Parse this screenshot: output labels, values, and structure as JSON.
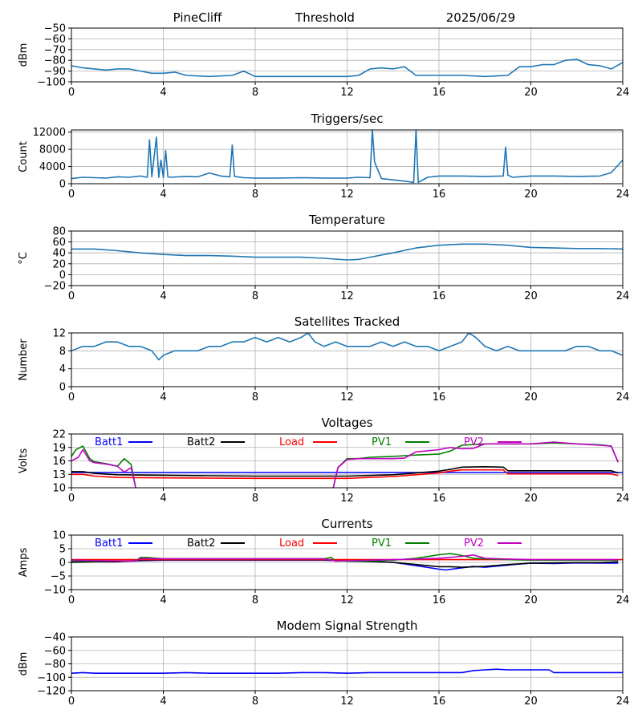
{
  "header": {
    "site": "PineCliff",
    "mode": "Threshold",
    "date": "2025/06/29"
  },
  "chart_data": [
    {
      "id": "signal",
      "type": "line",
      "title": "",
      "ylabel": "dBm",
      "xlim": [
        0,
        24
      ],
      "ylim": [
        -100,
        -50
      ],
      "xticks": [
        0,
        4,
        8,
        12,
        16,
        20,
        24
      ],
      "yticks": [
        -100,
        -90,
        -80,
        -70,
        -60,
        -50
      ],
      "grid": true,
      "series": [
        {
          "color": "#1f77b4",
          "x": [
            0,
            0.5,
            1,
            1.5,
            2,
            2.5,
            3,
            3.5,
            4,
            4.5,
            5,
            6,
            7,
            7.5,
            8,
            9,
            10,
            11,
            12,
            12.5,
            13,
            13.5,
            14,
            14.5,
            15,
            15.5,
            16,
            17,
            18,
            19,
            19.5,
            20,
            20.5,
            21,
            21.5,
            22,
            22.5,
            23,
            23.5,
            24
          ],
          "y": [
            -85,
            -87,
            -88,
            -89,
            -88,
            -88,
            -90,
            -92,
            -92,
            -91,
            -94,
            -95,
            -94,
            -90,
            -95,
            -95,
            -95,
            -95,
            -95,
            -94,
            -88,
            -87,
            -88,
            -86,
            -94,
            -94,
            -94,
            -94,
            -95,
            -94,
            -86,
            -86,
            -84,
            -84,
            -80,
            -79,
            -84,
            -85,
            -88,
            -82
          ]
        }
      ]
    },
    {
      "id": "triggers",
      "type": "line",
      "title": "Triggers/sec",
      "ylabel": "Count",
      "xlim": [
        0,
        24
      ],
      "ylim": [
        0,
        12500
      ],
      "xticks": [
        0,
        4,
        8,
        12,
        16,
        20,
        24
      ],
      "yticks": [
        0,
        4000,
        8000,
        12000
      ],
      "grid": true,
      "series": [
        {
          "color": "#1f77b4",
          "x": [
            0,
            0.5,
            1,
            1.5,
            2,
            2.5,
            3,
            3.3,
            3.4,
            3.5,
            3.7,
            3.8,
            3.9,
            4,
            4.1,
            4.2,
            4.3,
            5,
            5.5,
            6,
            6.5,
            6.9,
            7.0,
            7.1,
            7.5,
            8,
            9,
            10,
            11,
            12,
            12.5,
            13.0,
            13.1,
            13.2,
            13.5,
            14,
            14.5,
            14.9,
            15.0,
            15.1,
            15.5,
            16,
            17,
            18,
            18.8,
            18.9,
            19.0,
            19.2,
            19.5,
            20,
            21,
            22,
            23,
            23.5,
            24
          ],
          "y": [
            1200,
            1500,
            1400,
            1300,
            1600,
            1500,
            1800,
            1500,
            10200,
            1600,
            10800,
            1500,
            5500,
            1400,
            7700,
            1600,
            1500,
            1700,
            1600,
            2500,
            1800,
            1600,
            9000,
            1700,
            1400,
            1300,
            1300,
            1400,
            1300,
            1300,
            1500,
            1400,
            12500,
            5000,
            1200,
            900,
            600,
            300,
            12500,
            300,
            1500,
            1800,
            1800,
            1700,
            1800,
            8500,
            2000,
            1500,
            1600,
            1800,
            1800,
            1700,
            1800,
            2600,
            5500
          ]
        }
      ]
    },
    {
      "id": "temperature",
      "type": "line",
      "title": "Temperature",
      "ylabel": "°C",
      "xlim": [
        0,
        24
      ],
      "ylim": [
        -20,
        80
      ],
      "xticks": [
        0,
        4,
        8,
        12,
        16,
        20,
        24
      ],
      "yticks": [
        -20,
        0,
        20,
        40,
        60,
        80
      ],
      "grid": true,
      "series": [
        {
          "color": "#1f77b4",
          "x": [
            0,
            1,
            2,
            3,
            4,
            5,
            6,
            7,
            8,
            9,
            10,
            11,
            12,
            12.5,
            13,
            14,
            15,
            16,
            17,
            18,
            19,
            20,
            21,
            22,
            23,
            24
          ],
          "y": [
            47,
            47,
            44,
            40,
            37,
            35,
            35,
            34,
            32,
            32,
            32,
            30,
            27,
            28,
            32,
            40,
            49,
            54,
            56,
            56,
            54,
            50,
            49,
            48,
            48,
            47
          ]
        }
      ]
    },
    {
      "id": "satellites",
      "type": "line",
      "title": "Satellites Tracked",
      "ylabel": "Number",
      "xlim": [
        0,
        24
      ],
      "ylim": [
        0,
        12
      ],
      "xticks": [
        0,
        4,
        8,
        12,
        16,
        20,
        24
      ],
      "yticks": [
        0,
        4,
        8,
        12
      ],
      "grid": true,
      "series": [
        {
          "color": "#1f77b4",
          "x": [
            0,
            0.5,
            1,
            1.5,
            2,
            2.5,
            3,
            3.5,
            3.8,
            4,
            4.5,
            5,
            5.5,
            6,
            6.5,
            7,
            7.5,
            8,
            8.5,
            9,
            9.5,
            10,
            10.3,
            10.6,
            11,
            11.5,
            12,
            12.5,
            13,
            13.5,
            14,
            14.5,
            15,
            15.5,
            16,
            16.5,
            17,
            17.3,
            17.6,
            18,
            18.5,
            19,
            19.5,
            20,
            20.5,
            21,
            21.5,
            22,
            22.5,
            23,
            23.5,
            24
          ],
          "y": [
            8,
            9,
            9,
            10,
            10,
            9,
            9,
            8,
            6,
            7,
            8,
            8,
            8,
            9,
            9,
            10,
            10,
            11,
            10,
            11,
            10,
            11,
            12,
            10,
            9,
            10,
            9,
            9,
            9,
            10,
            9,
            10,
            9,
            9,
            8,
            9,
            10,
            12,
            11,
            9,
            8,
            9,
            8,
            8,
            8,
            8,
            8,
            9,
            9,
            8,
            8,
            7
          ]
        }
      ]
    },
    {
      "id": "voltages",
      "type": "line",
      "title": "Voltages",
      "ylabel": "Volts",
      "xlim": [
        0,
        24
      ],
      "ylim": [
        10,
        22
      ],
      "xticks": [
        0,
        4,
        8,
        12,
        16,
        20,
        24
      ],
      "yticks": [
        10,
        13,
        16,
        19,
        22
      ],
      "grid": true,
      "series": [
        {
          "name": "Batt1",
          "color": "#0000ff",
          "x": [
            0,
            24
          ],
          "y": [
            13.4,
            13.4
          ]
        },
        {
          "name": "Batt2",
          "color": "#000000",
          "x": [
            0,
            0.5,
            1,
            2,
            4,
            8,
            10,
            12,
            14,
            15,
            16,
            16.5,
            17,
            18,
            18.8,
            19,
            20,
            22,
            23.5,
            23.8
          ],
          "y": [
            13.6,
            13.6,
            13.2,
            12.9,
            12.8,
            12.6,
            12.6,
            12.6,
            12.9,
            13.3,
            13.7,
            14.1,
            14.6,
            14.7,
            14.6,
            13.8,
            13.8,
            13.8,
            13.8,
            13.3
          ]
        },
        {
          "name": "Load",
          "color": "#ff0000",
          "x": [
            0,
            0.5,
            1,
            2,
            4,
            8,
            10,
            12,
            14,
            15,
            16,
            16.5,
            17,
            18,
            18.8,
            19,
            20,
            22,
            23.5,
            23.8
          ],
          "y": [
            13.0,
            13.0,
            12.6,
            12.3,
            12.2,
            12.1,
            12.1,
            12.1,
            12.5,
            12.9,
            13.3,
            13.7,
            14.0,
            14.0,
            14.0,
            13.1,
            13.1,
            13.1,
            13.1,
            12.7
          ]
        },
        {
          "name": "PV1",
          "color": "#008000",
          "x": [
            0,
            0.2,
            0.5,
            0.8,
            1,
            1.5,
            2,
            2.3,
            2.6,
            2.8,
            null,
            11.4,
            11.6,
            12,
            12.5,
            13,
            14,
            15,
            16,
            16.5,
            17,
            18,
            19,
            20,
            21,
            22,
            23,
            23.5,
            23.8
          ],
          "y": [
            17,
            18.5,
            19.3,
            16.5,
            15.8,
            15.4,
            14.8,
            16.5,
            15.2,
            10,
            null,
            10,
            14.5,
            16.5,
            16.5,
            16.8,
            17.0,
            17.3,
            17.5,
            18.2,
            19.5,
            19.8,
            19.8,
            19.8,
            20.0,
            19.8,
            19.6,
            19.3,
            15.7
          ]
        },
        {
          "name": "PV2",
          "color": "#bf00bf",
          "x": [
            0,
            0.3,
            0.5,
            0.8,
            1,
            1.5,
            2,
            2.3,
            2.6,
            2.8,
            null,
            11.4,
            11.6,
            12,
            12.5,
            13,
            14,
            14.5,
            15,
            16,
            16.5,
            17,
            17.5,
            18,
            19,
            20,
            21,
            22,
            23,
            23.5,
            23.8
          ],
          "y": [
            16.0,
            16.8,
            18.5,
            16.0,
            15.6,
            15.3,
            14.8,
            13.5,
            14.5,
            10,
            null,
            10,
            14.5,
            16.3,
            16.5,
            16.5,
            16.5,
            16.6,
            18.0,
            18.5,
            19.0,
            18.7,
            18.8,
            19.8,
            19.8,
            19.8,
            20.2,
            19.8,
            19.5,
            19.3,
            15.7
          ]
        }
      ]
    },
    {
      "id": "currents",
      "type": "line",
      "title": "Currents",
      "ylabel": "Amps",
      "xlim": [
        0,
        24
      ],
      "ylim": [
        -10,
        10
      ],
      "xticks": [
        0,
        4,
        8,
        12,
        16,
        20,
        24
      ],
      "yticks": [
        -10,
        -5,
        0,
        5,
        10
      ],
      "grid": true,
      "series": [
        {
          "name": "Batt1",
          "color": "#0000ff",
          "x": [
            0,
            1,
            2,
            3,
            4,
            8,
            11,
            12,
            13,
            14,
            15,
            16,
            16.3,
            17,
            17.5,
            18,
            19,
            20,
            21,
            22,
            23,
            23.8
          ],
          "y": [
            0.5,
            0.4,
            0.3,
            0.6,
            0.8,
            0.8,
            0.8,
            0.5,
            0.3,
            0.0,
            -1.2,
            -2.5,
            -2.8,
            -2.0,
            -1.5,
            -1.8,
            -1.0,
            -0.3,
            -0.4,
            -0.2,
            -0.3,
            -0.3
          ]
        },
        {
          "name": "Batt2",
          "color": "#000000",
          "x": [
            0,
            1,
            2,
            3,
            4,
            8,
            11,
            12,
            13,
            14,
            15,
            16,
            16.5,
            17,
            18,
            19,
            20,
            21,
            22,
            23,
            23.8
          ],
          "y": [
            0.0,
            0.2,
            0.2,
            0.8,
            0.9,
            0.9,
            0.9,
            0.5,
            0.3,
            0.0,
            -0.8,
            -1.6,
            -1.6,
            -1.8,
            -1.5,
            -0.8,
            -0.3,
            -0.2,
            -0.1,
            -0.1,
            0.2
          ]
        },
        {
          "name": "Load",
          "color": "#ff0000",
          "x": [
            0,
            24
          ],
          "y": [
            1.0,
            1.0
          ]
        },
        {
          "name": "PV1",
          "color": "#008000",
          "x": [
            0,
            2,
            2.8,
            3.0,
            3.3,
            4,
            8,
            11,
            11.3,
            11.5,
            12,
            13,
            14,
            15,
            16,
            16.5,
            17,
            17.5,
            18,
            19,
            20,
            22,
            23.8
          ],
          "y": [
            0.5,
            0.5,
            0.5,
            1.8,
            1.8,
            1.3,
            1.3,
            1.3,
            1.8,
            0.5,
            0.5,
            0.5,
            0.8,
            1.5,
            2.8,
            3.2,
            2.5,
            1.5,
            1.3,
            1.0,
            0.8,
            0.8,
            0.8
          ]
        },
        {
          "name": "PV2",
          "color": "#bf00bf",
          "x": [
            0,
            2,
            2.8,
            3.0,
            4,
            8,
            11,
            11.5,
            12,
            13,
            14,
            15,
            16,
            17,
            17.5,
            18,
            19,
            20,
            22,
            23.8
          ],
          "y": [
            0.8,
            0.5,
            0.5,
            1.4,
            1.3,
            1.3,
            1.3,
            0.5,
            0.6,
            0.8,
            1.0,
            1.2,
            1.5,
            2.2,
            2.7,
            1.5,
            1.2,
            1.0,
            1.0,
            1.0
          ]
        }
      ]
    },
    {
      "id": "modem",
      "type": "line",
      "title": "Modem Signal Strength",
      "ylabel": "dBm",
      "xlim": [
        0,
        24
      ],
      "ylim": [
        -120,
        -40
      ],
      "xticks": [
        0,
        4,
        8,
        12,
        16,
        20,
        24
      ],
      "yticks": [
        -120,
        -100,
        -80,
        -60,
        -40
      ],
      "grid": true,
      "series": [
        {
          "color": "#0000ff",
          "x": [
            0,
            0.5,
            1,
            2,
            3,
            4,
            5,
            6,
            7,
            8,
            9,
            10,
            11,
            12,
            13,
            14,
            15,
            16,
            17,
            17.5,
            18,
            18.5,
            19,
            20,
            20.8,
            21,
            22,
            23,
            24
          ],
          "y": [
            -94,
            -93,
            -94,
            -94,
            -94,
            -94,
            -93,
            -94,
            -94,
            -94,
            -94,
            -93,
            -93,
            -94,
            -93,
            -93,
            -93,
            -93,
            -93,
            -90,
            -89,
            -88,
            -89,
            -89,
            -89,
            -93,
            -93,
            -93,
            -93
          ]
        }
      ]
    }
  ]
}
